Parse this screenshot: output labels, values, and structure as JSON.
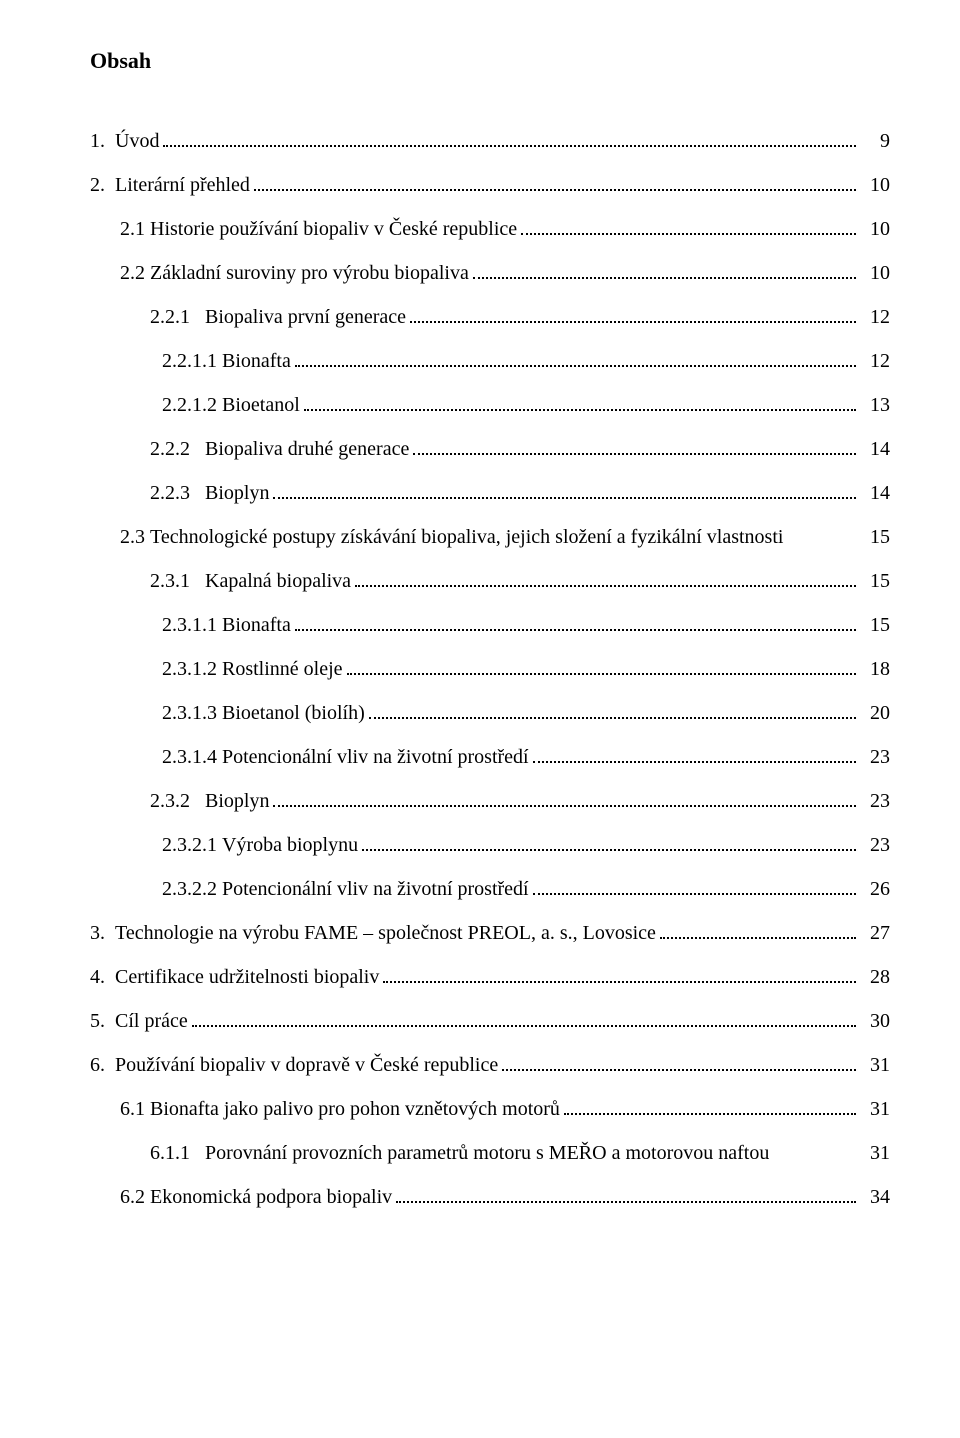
{
  "heading": "Obsah",
  "toc": [
    {
      "indent": 0,
      "num": "1.",
      "title": "Úvod",
      "page": "9",
      "gap": "  "
    },
    {
      "indent": 0,
      "num": "2.",
      "title": "Literární přehled",
      "page": "10",
      "gap": "  "
    },
    {
      "indent": 1,
      "num": "2.1",
      "title": "Historie používání biopaliv v České republice",
      "page": "10",
      "gap": " "
    },
    {
      "indent": 1,
      "num": "2.2",
      "title": "Základní suroviny pro výrobu biopaliva",
      "page": "10",
      "gap": " "
    },
    {
      "indent": 2,
      "num": "2.2.1",
      "title": "Biopaliva první generace",
      "page": "12",
      "gap": "   "
    },
    {
      "indent": 3,
      "num": "2.2.1.1",
      "title": "Bionafta",
      "page": "12",
      "gap": " "
    },
    {
      "indent": 3,
      "num": "2.2.1.2",
      "title": "Bioetanol",
      "page": "13",
      "gap": " "
    },
    {
      "indent": 2,
      "num": "2.2.2",
      "title": "Biopaliva druhé generace",
      "page": "14",
      "gap": "   "
    },
    {
      "indent": 2,
      "num": "2.2.3",
      "title": "Bioplyn",
      "page": "14",
      "gap": "   "
    },
    {
      "indent": 1,
      "num": "2.3",
      "title": "Technologické postupy získávání biopaliva, jejich složení a fyzikální vlastnosti",
      "page": "15",
      "gap": " ",
      "wrap": true
    },
    {
      "indent": 2,
      "num": "2.3.1",
      "title": "Kapalná biopaliva",
      "page": "15",
      "gap": "   "
    },
    {
      "indent": 3,
      "num": "2.3.1.1",
      "title": "Bionafta",
      "page": "15",
      "gap": " "
    },
    {
      "indent": 3,
      "num": "2.3.1.2",
      "title": "Rostlinné oleje",
      "page": "18",
      "gap": " "
    },
    {
      "indent": 3,
      "num": "2.3.1.3",
      "title": "Bioetanol (biolíh)",
      "page": "20",
      "gap": " "
    },
    {
      "indent": 3,
      "num": "2.3.1.4",
      "title": "Potencionální vliv na životní prostředí",
      "page": "23",
      "gap": " "
    },
    {
      "indent": 2,
      "num": "2.3.2",
      "title": "Bioplyn",
      "page": "23",
      "gap": "   "
    },
    {
      "indent": 3,
      "num": "2.3.2.1",
      "title": "Výroba bioplynu",
      "page": "23",
      "gap": " "
    },
    {
      "indent": 3,
      "num": "2.3.2.2",
      "title": "Potencionální vliv na životní prostředí",
      "page": "26",
      "gap": " "
    },
    {
      "indent": 0,
      "num": "3.",
      "title": "Technologie na výrobu FAME – společnost PREOL, a. s., Lovosice",
      "page": "27",
      "gap": "  "
    },
    {
      "indent": 0,
      "num": "4.",
      "title": "Certifikace udržitelnosti biopaliv",
      "page": "28",
      "gap": "  "
    },
    {
      "indent": 0,
      "num": "5.",
      "title": "Cíl práce",
      "page": "30",
      "gap": "  "
    },
    {
      "indent": 0,
      "num": "6.",
      "title": "Používání biopaliv v dopravě v České republice",
      "page": "31",
      "gap": "  "
    },
    {
      "indent": 1,
      "num": "6.1",
      "title": "Bionafta jako palivo pro pohon vznětových motorů",
      "page": "31",
      "gap": " "
    },
    {
      "indent": 2,
      "num": "6.1.1",
      "title": "Porovnání provozních parametrů motoru s MEŘO a motorovou naftou",
      "page": "31",
      "gap": "   ",
      "wrap": true,
      "wrapIndent": 4
    },
    {
      "indent": 1,
      "num": "6.2",
      "title": "Ekonomická podpora biopaliv",
      "page": "34",
      "gap": " "
    }
  ]
}
